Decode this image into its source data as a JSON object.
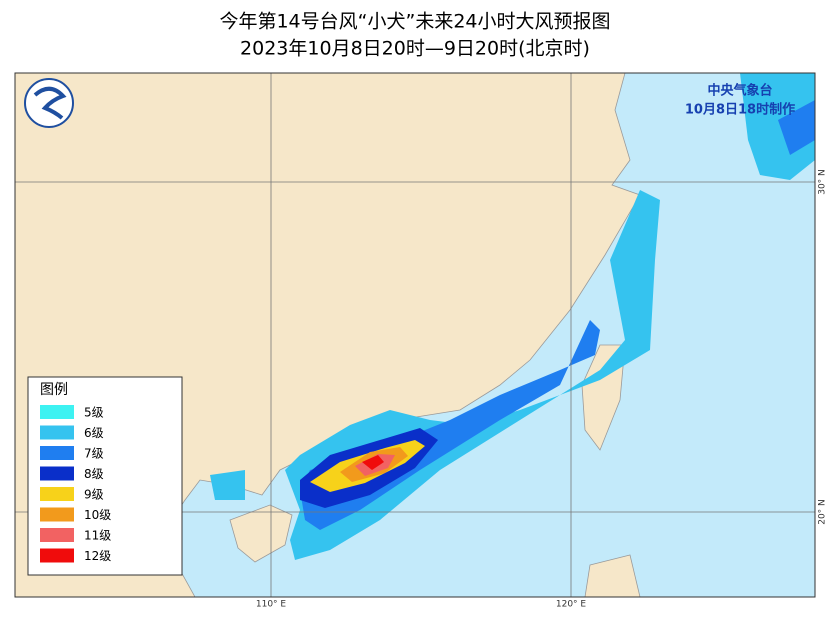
{
  "header": {
    "title": "今年第14号台风“小犬”未来24小时大风预报图",
    "subtitle": "2023年10月8日20时—9日20时(北京时)"
  },
  "issuer": {
    "agency": "中央气象台",
    "issued": "10月8日18时制作"
  },
  "legend": {
    "title": "图例",
    "items": [
      {
        "label": "5级",
        "color": "#3df2f2"
      },
      {
        "label": "6级",
        "color": "#35c3ef"
      },
      {
        "label": "7级",
        "color": "#1f7ef0"
      },
      {
        "label": "8级",
        "color": "#0a2fc9"
      },
      {
        "label": "9级",
        "color": "#f7d21a"
      },
      {
        "label": "10级",
        "color": "#f29a1c"
      },
      {
        "label": "11级",
        "color": "#f26262"
      },
      {
        "label": "12级",
        "color": "#f00c0c"
      }
    ]
  },
  "axes": {
    "lon_labels": [
      "110° E",
      "120° E"
    ],
    "lat_labels": [
      "30° N",
      "20° N"
    ]
  }
}
